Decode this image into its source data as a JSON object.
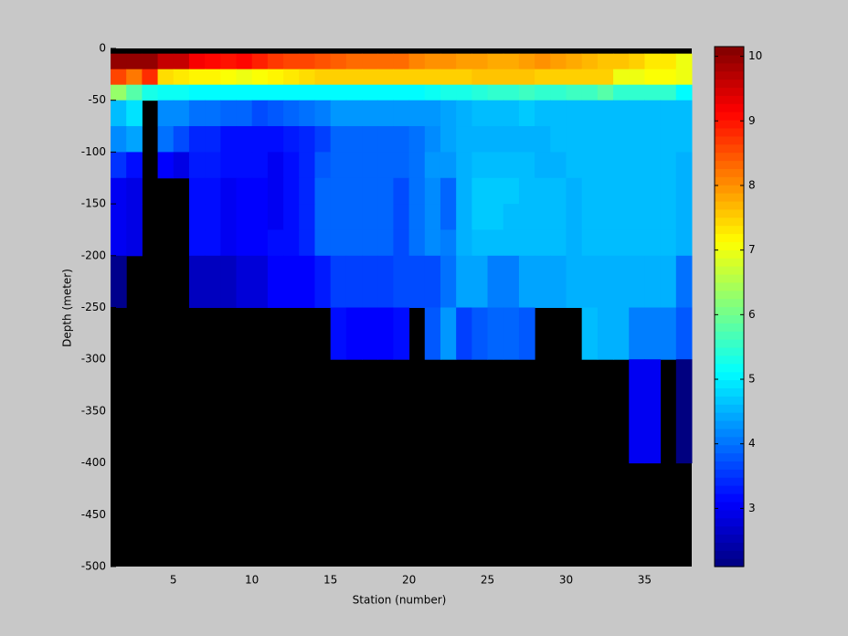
{
  "chart_data": {
    "type": "heatmap",
    "xlabel": "Station (number)",
    "ylabel": "Depth (meter)",
    "colormap": "jet",
    "missing_color": "#000000",
    "x": [
      1,
      2,
      3,
      4,
      5,
      6,
      7,
      8,
      9,
      10,
      11,
      12,
      13,
      14,
      15,
      16,
      17,
      18,
      19,
      20,
      21,
      22,
      23,
      24,
      25,
      26,
      27,
      28,
      29,
      30,
      31,
      32,
      33,
      34,
      35,
      36,
      37,
      38
    ],
    "y": [
      0,
      -5,
      -20,
      -35,
      -50,
      -75,
      -100,
      -125,
      -150,
      -175,
      -200,
      -250,
      -300,
      -400,
      -500
    ],
    "values": [
      [
        null,
        null,
        null,
        null,
        null,
        null,
        null,
        null,
        null,
        null,
        null,
        null,
        null,
        null,
        null,
        null,
        null,
        null,
        null,
        null,
        null,
        null,
        null,
        null,
        null,
        null,
        null,
        null,
        null,
        null,
        null,
        null,
        null,
        null,
        null,
        null,
        null
      ],
      [
        10.0,
        10.0,
        10.0,
        9.6,
        9.6,
        9.2,
        9.1,
        9.0,
        9.1,
        8.9,
        8.7,
        8.6,
        8.6,
        8.5,
        8.4,
        8.3,
        8.3,
        8.3,
        8.3,
        8.1,
        8.0,
        8.0,
        7.9,
        7.9,
        7.8,
        7.8,
        7.9,
        8.0,
        7.9,
        7.8,
        7.7,
        7.6,
        7.6,
        7.5,
        7.3,
        7.3,
        7.0
      ],
      [
        8.6,
        8.2,
        8.8,
        7.4,
        7.3,
        7.2,
        7.2,
        7.1,
        7.0,
        7.1,
        7.2,
        7.3,
        7.4,
        7.5,
        7.5,
        7.5,
        7.5,
        7.5,
        7.5,
        7.5,
        7.5,
        7.5,
        7.5,
        7.6,
        7.6,
        7.6,
        7.6,
        7.5,
        7.5,
        7.5,
        7.5,
        7.5,
        7.0,
        7.0,
        7.1,
        7.1,
        7.0
      ],
      [
        6.3,
        5.8,
        5.3,
        5.2,
        5.2,
        5.1,
        5.1,
        5.1,
        5.1,
        5.1,
        5.1,
        5.1,
        5.1,
        5.1,
        5.1,
        5.1,
        5.1,
        5.1,
        5.1,
        5.1,
        5.2,
        5.3,
        5.3,
        5.4,
        5.5,
        5.5,
        5.6,
        5.5,
        5.5,
        5.6,
        5.6,
        5.8,
        5.5,
        5.5,
        5.5,
        5.5,
        5.1
      ],
      [
        4.6,
        4.9,
        null,
        4.2,
        4.2,
        4.0,
        4.0,
        3.9,
        3.9,
        3.7,
        3.8,
        3.9,
        4.0,
        4.1,
        4.3,
        4.3,
        4.3,
        4.3,
        4.3,
        4.3,
        4.3,
        4.4,
        4.5,
        4.6,
        4.6,
        4.6,
        4.7,
        4.6,
        4.6,
        4.6,
        4.6,
        4.6,
        4.6,
        4.6,
        4.6,
        4.6,
        4.6
      ],
      [
        4.2,
        4.4,
        null,
        4.0,
        3.7,
        3.4,
        3.4,
        3.2,
        3.2,
        3.2,
        3.2,
        3.3,
        3.4,
        3.6,
        3.9,
        3.9,
        3.9,
        3.9,
        3.9,
        4.0,
        4.2,
        4.4,
        4.5,
        4.5,
        4.5,
        4.5,
        4.5,
        4.5,
        4.6,
        4.6,
        4.6,
        4.6,
        4.6,
        4.6,
        4.6,
        4.6,
        4.6
      ],
      [
        3.5,
        3.2,
        null,
        3.1,
        2.9,
        3.3,
        3.3,
        3.2,
        3.2,
        3.2,
        3.0,
        3.2,
        3.4,
        3.8,
        3.9,
        3.9,
        3.9,
        3.9,
        3.9,
        4.0,
        4.3,
        4.3,
        4.5,
        4.6,
        4.6,
        4.6,
        4.6,
        4.5,
        4.5,
        4.6,
        4.6,
        4.6,
        4.6,
        4.6,
        4.6,
        4.6,
        4.5
      ],
      [
        3.0,
        2.9,
        null,
        null,
        null,
        3.2,
        3.2,
        3.0,
        3.1,
        3.1,
        3.0,
        3.2,
        3.4,
        3.9,
        3.9,
        3.9,
        3.9,
        3.9,
        3.7,
        4.0,
        4.2,
        3.9,
        4.5,
        4.7,
        4.7,
        4.7,
        4.6,
        4.6,
        4.6,
        4.5,
        4.6,
        4.6,
        4.6,
        4.6,
        4.6,
        4.6,
        4.5
      ],
      [
        3.0,
        2.9,
        null,
        null,
        null,
        3.2,
        3.2,
        3.0,
        3.1,
        3.1,
        3.0,
        3.2,
        3.4,
        3.9,
        3.9,
        3.9,
        3.9,
        3.9,
        3.7,
        4.0,
        4.2,
        3.9,
        4.5,
        4.7,
        4.7,
        4.6,
        4.6,
        4.6,
        4.6,
        4.5,
        4.6,
        4.6,
        4.6,
        4.6,
        4.6,
        4.6,
        4.5
      ],
      [
        3.0,
        2.9,
        null,
        null,
        null,
        3.2,
        3.2,
        3.0,
        3.1,
        3.1,
        3.2,
        3.2,
        3.4,
        3.9,
        3.9,
        3.9,
        3.9,
        3.9,
        3.7,
        4.0,
        4.2,
        4.1,
        4.5,
        4.6,
        4.6,
        4.6,
        4.6,
        4.6,
        4.6,
        4.5,
        4.6,
        4.6,
        4.6,
        4.6,
        4.6,
        4.6,
        4.5
      ],
      [
        2.2,
        null,
        null,
        null,
        null,
        2.6,
        2.6,
        2.6,
        2.8,
        2.8,
        3.1,
        3.1,
        3.1,
        3.3,
        3.6,
        3.6,
        3.6,
        3.6,
        3.7,
        3.7,
        3.7,
        4.0,
        4.4,
        4.4,
        4.1,
        4.1,
        4.4,
        4.4,
        4.4,
        4.5,
        4.5,
        4.5,
        4.5,
        4.5,
        4.5,
        4.5,
        4.0
      ],
      [
        null,
        null,
        null,
        null,
        null,
        null,
        null,
        null,
        null,
        null,
        null,
        null,
        null,
        null,
        3.2,
        3.1,
        3.1,
        3.1,
        3.2,
        null,
        3.8,
        4.3,
        3.6,
        3.8,
        3.9,
        3.9,
        3.8,
        null,
        null,
        null,
        4.6,
        4.5,
        4.5,
        4.1,
        4.1,
        4.1,
        3.8
      ],
      [
        null,
        null,
        null,
        null,
        null,
        null,
        null,
        null,
        null,
        null,
        null,
        null,
        null,
        null,
        null,
        null,
        null,
        null,
        null,
        null,
        null,
        null,
        null,
        null,
        null,
        null,
        null,
        null,
        null,
        null,
        null,
        null,
        null,
        3.0,
        3.0,
        null,
        2.1
      ],
      [
        null,
        null,
        null,
        null,
        null,
        null,
        null,
        null,
        null,
        null,
        null,
        null,
        null,
        null,
        null,
        null,
        null,
        null,
        null,
        null,
        null,
        null,
        null,
        null,
        null,
        null,
        null,
        null,
        null,
        null,
        null,
        null,
        null,
        null,
        null,
        null,
        null
      ]
    ],
    "xlim": [
      1,
      38
    ],
    "ylim": [
      -500,
      0
    ],
    "xticks": [
      5,
      10,
      15,
      20,
      25,
      30,
      35
    ],
    "yticks": [
      0,
      -50,
      -100,
      -150,
      -200,
      -250,
      -300,
      -350,
      -400,
      -450,
      -500
    ],
    "clim": [
      2.1,
      10.15
    ],
    "cticks": [
      3,
      4,
      5,
      6,
      7,
      8,
      9,
      10
    ]
  }
}
